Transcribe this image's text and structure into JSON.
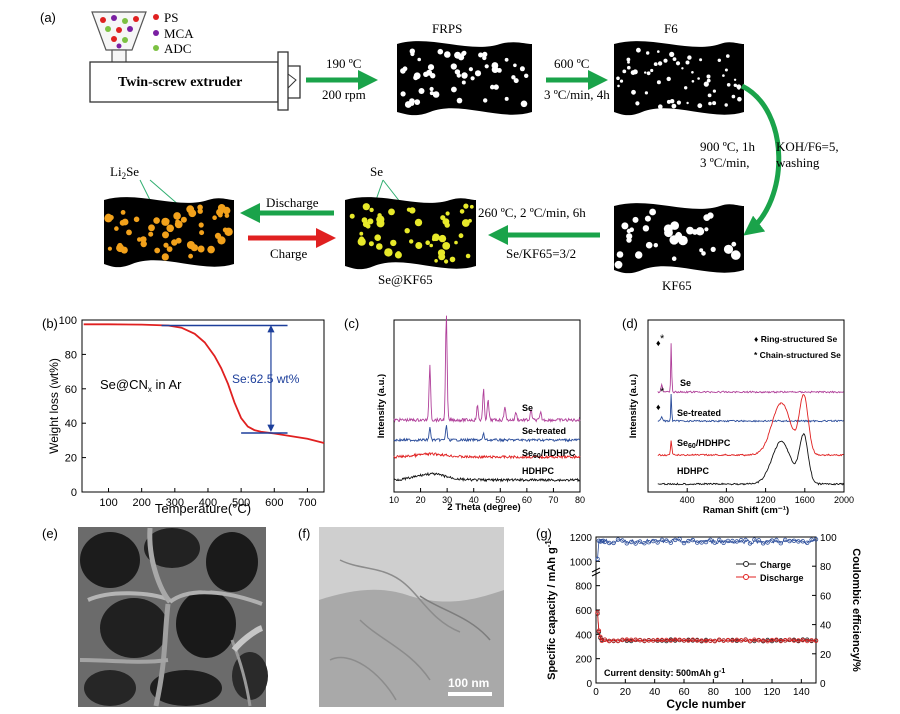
{
  "panel_a": {
    "label": "(a)",
    "legend": [
      {
        "name": "PS",
        "color": "#e02020"
      },
      {
        "name": "MCA",
        "color": "#7a1fa2"
      },
      {
        "name": "ADC",
        "color": "#7cc142"
      }
    ],
    "extruder_label": "Twin-screw extruder",
    "step1": {
      "line1": "190 ºC",
      "line2": "200 rpm"
    },
    "frps_label": "FRPS",
    "step2": {
      "line1": "600 ºC",
      "line2": "3 ºC/min, 4h"
    },
    "f6_label": "F6",
    "step3": {
      "line1": "900 ºC, 1h",
      "line2": "3 ºC/min,",
      "line3": "KOH/F6=5,",
      "line4": "washing"
    },
    "kf65_label": "KF65",
    "step4": {
      "line1": "260 ºC, 2 ºC/min, 6h",
      "line2": "Se/KF65=3/2"
    },
    "se_label": "Se",
    "sekf65_label": "Se@KF65",
    "li2se_label": "Li2Se",
    "discharge_label": "Discharge",
    "charge_label": "Charge"
  },
  "panel_b": {
    "label": "(b)",
    "annotation": "Se@CNx in Ar",
    "se_content": "Se:62.5 wt%",
    "chart_data": {
      "type": "line",
      "xlabel": "Temperature(°C)",
      "ylabel": "Weight loss (wt%)",
      "xlim": [
        20,
        750
      ],
      "ylim": [
        0,
        100
      ],
      "xticks": [
        100,
        200,
        300,
        400,
        500,
        600,
        700
      ],
      "yticks": [
        0,
        20,
        40,
        60,
        80,
        100
      ],
      "series": [
        {
          "color": "#e02020",
          "x": [
            25,
            100,
            200,
            280,
            320,
            360,
            390,
            420,
            440,
            460,
            480,
            500,
            520,
            540,
            560,
            600,
            650,
            700,
            750
          ],
          "y": [
            97.5,
            97.5,
            97.3,
            96.8,
            95.5,
            92,
            87,
            79,
            72,
            63,
            52,
            43,
            38,
            36,
            35,
            34,
            32.5,
            31,
            28.5
          ]
        }
      ],
      "level_lines": [
        96.8,
        34.3
      ]
    }
  },
  "panel_c": {
    "label": "(c)",
    "chart_data": {
      "type": "line",
      "xlabel": "2 Theta (degree)",
      "ylabel": "Intensity (a.u.)",
      "xlim": [
        10,
        80
      ],
      "xticks": [
        10,
        20,
        30,
        40,
        50,
        60,
        70,
        80
      ],
      "series": [
        {
          "name": "Se",
          "color": "#b0409a"
        },
        {
          "name": "Se-treated",
          "color": "#2b4d9b"
        },
        {
          "name": "Se60/HDHPC",
          "color": "#e02020"
        },
        {
          "name": "HDHPC",
          "color": "#111111"
        }
      ]
    }
  },
  "panel_d": {
    "label": "(d)",
    "legend": [
      "♦ Ring-structured Se",
      "* Chain-structured Se"
    ],
    "chart_data": {
      "type": "line",
      "xlabel": "Raman Shift (cm⁻¹)",
      "ylabel": "Intensity (a.u.)",
      "xlim": [
        0,
        2000
      ],
      "xticks": [
        0,
        400,
        800,
        1200,
        1600,
        2000
      ],
      "tick_labels": [
        "400",
        "800",
        "1200",
        "1600",
        "2000"
      ],
      "series": [
        {
          "name": "Se",
          "color": "#b0409a"
        },
        {
          "name": "Se-treated",
          "color": "#2b4d9b"
        },
        {
          "name": "Se60/HDHPC",
          "color": "#e02020"
        },
        {
          "name": "HDHPC",
          "color": "#111111"
        }
      ]
    }
  },
  "panel_e": {
    "label": "(e)"
  },
  "panel_f": {
    "label": "(f)",
    "scale_bar": "100 nm"
  },
  "panel_g": {
    "label": "(g)",
    "annotation": "Current density: 500mAh g-1",
    "chart_data": {
      "type": "scatter",
      "xlabel": "Cycle number",
      "ylabel": "Specific capacity / mAh g-1",
      "y2label": "Coulombic efficiency/%",
      "xlim": [
        0,
        150
      ],
      "ylim": [
        0,
        1200
      ],
      "y2lim": [
        0,
        100
      ],
      "xticks": [
        0,
        20,
        40,
        60,
        80,
        100,
        120,
        140
      ],
      "yticks": [
        0,
        200,
        400,
        600,
        800,
        1000,
        1200
      ],
      "y2ticks": [
        0,
        20,
        40,
        60,
        80,
        100
      ],
      "legend_position": "top-right",
      "series": [
        {
          "name": "Charge",
          "color": "#222222",
          "values_note": ""
        },
        {
          "name": "Discharge",
          "color": "#e02020"
        }
      ],
      "capacity_start": [
        570,
        420,
        370
      ],
      "capacity_plateau": 350,
      "efficiency_plateau": 97
    }
  }
}
